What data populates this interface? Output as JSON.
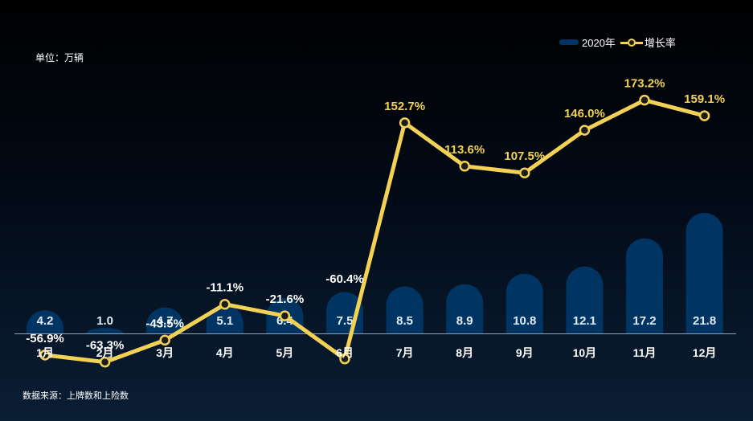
{
  "unit_label": "单位：万辆",
  "source_label": "数据来源：上牌数和上险数",
  "legend": {
    "bar_label": "2020年",
    "line_label": "增长率"
  },
  "colors": {
    "bar": "#003563",
    "line": "#f2d155",
    "label_negative": "#ffffff",
    "label_positive": "#f2d155",
    "axis": "#8fa3b8"
  },
  "chart_data": {
    "type": "bar",
    "categories": [
      "1月",
      "2月",
      "3月",
      "4月",
      "5月",
      "6月",
      "7月",
      "8月",
      "9月",
      "10月",
      "11月",
      "12月"
    ],
    "series": [
      {
        "name": "2020年",
        "type": "bar",
        "values": [
          4.2,
          1.0,
          4.7,
          5.1,
          6.4,
          7.5,
          8.5,
          8.9,
          10.8,
          12.1,
          17.2,
          21.8
        ]
      },
      {
        "name": "增长率",
        "type": "line",
        "values": [
          -56.9,
          -63.3,
          -43.5,
          -11.1,
          -21.6,
          -60.4,
          152.7,
          113.6,
          107.5,
          146.0,
          173.2,
          159.1
        ]
      }
    ],
    "bar_labels": [
      "4.2",
      "1.0",
      "4.7",
      "5.1",
      "6.4",
      "7.5",
      "8.5",
      "8.9",
      "10.8",
      "12.1",
      "17.2",
      "21.8"
    ],
    "line_labels": [
      "-56.9%",
      "-63.3%",
      "-43.5%",
      "-11.1%",
      "-21.6%",
      "-60.4%",
      "152.7%",
      "113.6%",
      "107.5%",
      "146.0%",
      "173.2%",
      "159.1%"
    ],
    "unit": "万辆",
    "bar_ylim": [
      0,
      30
    ],
    "line_ylim": [
      -80,
      200
    ]
  }
}
